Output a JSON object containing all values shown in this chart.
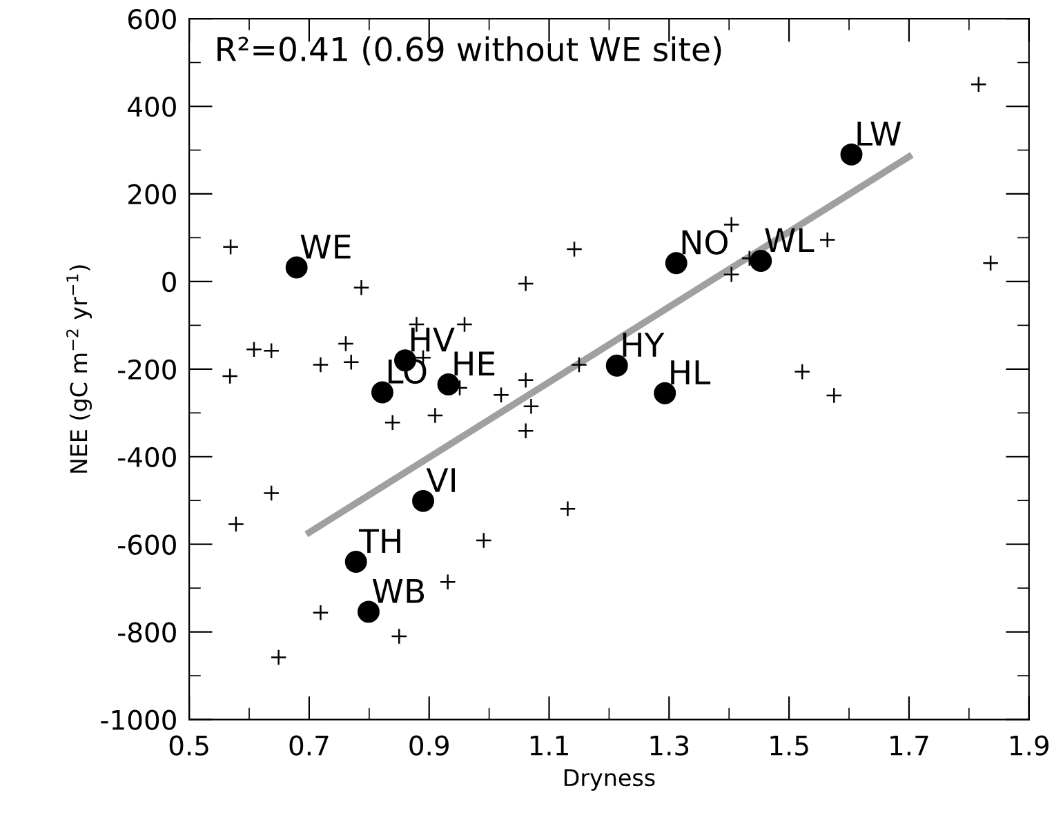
{
  "chart_data": {
    "type": "scatter",
    "xlabel": "Dryness",
    "ylabel": "NEE (gC m$^{−2}$ yr$^{−1}$)",
    "annotations": [
      "R²=0.41 (0.69 without WE site)",
      {
        "text": "WE",
        "x": 0.679,
        "y": 32
      },
      {
        "text": "HV",
        "x": 0.86,
        "y": -180
      },
      {
        "text": "LO",
        "x": 0.822,
        "y": -253
      },
      {
        "text": "HE",
        "x": 0.932,
        "y": -235
      },
      {
        "text": "NO",
        "x": 1.312,
        "y": 42
      },
      {
        "text": "WL",
        "x": 1.453,
        "y": 47
      },
      {
        "text": "LW",
        "x": 1.604,
        "y": 290
      },
      {
        "text": "HY",
        "x": 1.213,
        "y": -192
      },
      {
        "text": "HL",
        "x": 1.293,
        "y": -255
      },
      {
        "text": "VI",
        "x": 0.89,
        "y": -501
      },
      {
        "text": "TH",
        "x": 0.778,
        "y": -640
      },
      {
        "text": "WB",
        "x": 0.799,
        "y": -754
      }
    ],
    "xlim": [
      0.5,
      1.9
    ],
    "xticks": [
      0.5,
      0.7,
      0.9,
      1.1,
      1.3,
      1.5,
      1.7,
      1.9
    ],
    "ylim": [
      -1000,
      600
    ],
    "yticks": [
      -1000,
      -800,
      -600,
      -400,
      -200,
      0,
      200,
      400,
      600
    ],
    "grid": false,
    "legend": false,
    "series": [
      {
        "marker": "cross",
        "color": "#000000",
        "x": [
          0.569,
          0.787,
          1.061,
          1.142,
          0.608,
          0.637,
          0.761,
          0.568,
          0.719,
          0.77,
          0.879,
          0.959,
          0.89,
          0.951,
          1.02,
          1.061,
          1.07,
          1.061,
          1.15,
          0.839,
          0.91,
          1.816,
          1.404,
          1.434,
          1.404,
          1.564,
          1.836,
          1.522,
          1.575,
          0.637,
          0.578,
          0.991,
          1.131,
          0.931,
          0.719,
          0.85,
          0.649
        ],
        "values": [
          79,
          -14,
          -5,
          74,
          -155,
          -158,
          -142,
          -216,
          -190,
          -184,
          -98,
          -98,
          -174,
          -243,
          -259,
          -225,
          -285,
          -341,
          -190,
          -322,
          -306,
          450,
          130,
          53,
          16,
          95,
          42,
          -206,
          -260,
          -483,
          -554,
          -591,
          -519,
          -686,
          -756,
          -810,
          -858
        ]
      },
      {
        "marker": "circle",
        "color": "#000000",
        "x": [
          0.679,
          0.86,
          0.822,
          0.932,
          1.312,
          1.453,
          1.604,
          1.213,
          1.293,
          0.89,
          0.778,
          0.799
        ],
        "values": [
          32,
          -180,
          -253,
          -235,
          42,
          47,
          290,
          -192,
          -255,
          -501,
          -640,
          -754
        ]
      },
      {
        "type": "line",
        "marker": "none",
        "color": "#a0a0a0",
        "x": [
          0.7,
          1.7
        ],
        "values": [
          -573,
          285
        ]
      }
    ]
  }
}
